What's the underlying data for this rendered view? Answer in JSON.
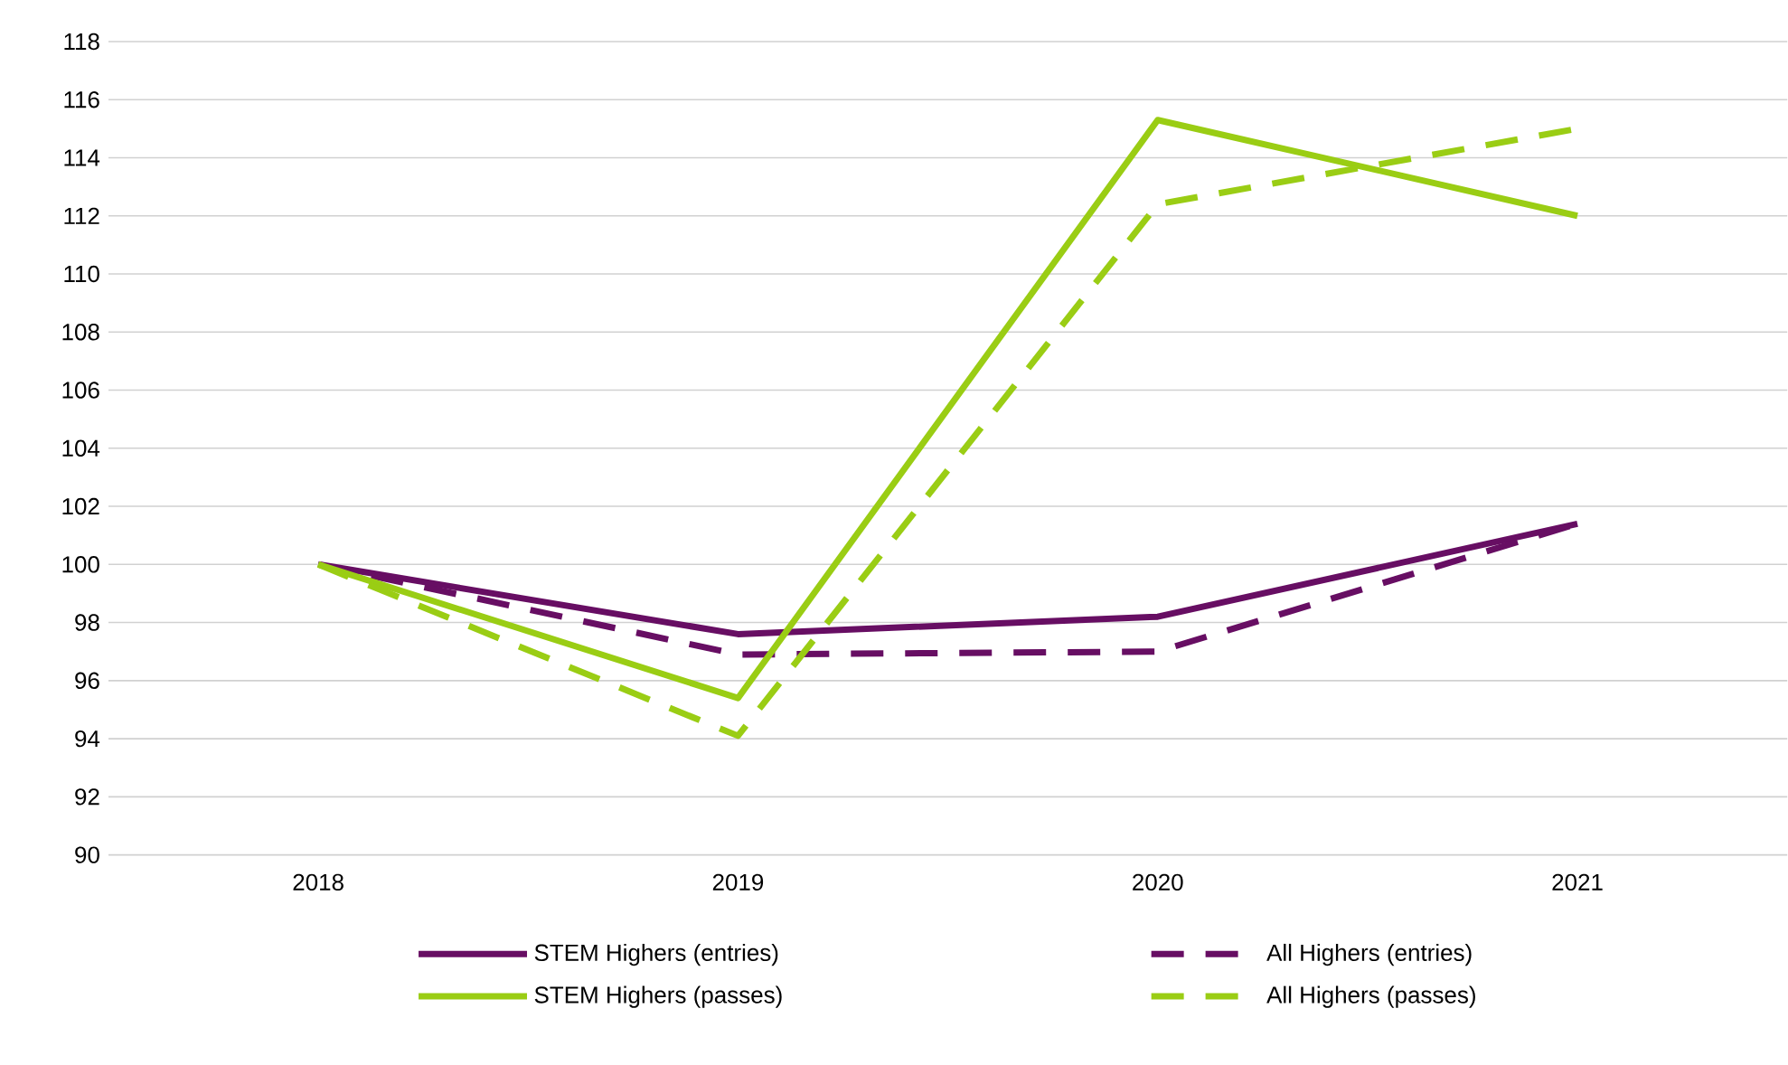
{
  "chart_data": {
    "type": "line",
    "categories": [
      "2018",
      "2019",
      "2020",
      "2021"
    ],
    "series": [
      {
        "name": "STEM Highers (entries)",
        "color": "#670e63",
        "line_style": "solid",
        "values": [
          100,
          97.6,
          98.2,
          101.4
        ]
      },
      {
        "name": "All Highers (entries)",
        "color": "#670e63",
        "line_style": "dashed",
        "values": [
          100,
          96.9,
          97.0,
          101.4
        ]
      },
      {
        "name": "STEM Highers (passes)",
        "color": "#9acd14",
        "line_style": "solid",
        "values": [
          100,
          95.4,
          115.3,
          112.0
        ]
      },
      {
        "name": "All Highers (passes)",
        "color": "#9acd14",
        "line_style": "dashed",
        "values": [
          100,
          94.1,
          112.4,
          115.0
        ]
      }
    ],
    "ylim": [
      90,
      118
    ],
    "yticks": [
      90,
      92,
      94,
      96,
      98,
      100,
      102,
      104,
      106,
      108,
      110,
      112,
      114,
      116,
      118
    ],
    "grid": "y",
    "legend": "bottom",
    "marker": "none"
  }
}
